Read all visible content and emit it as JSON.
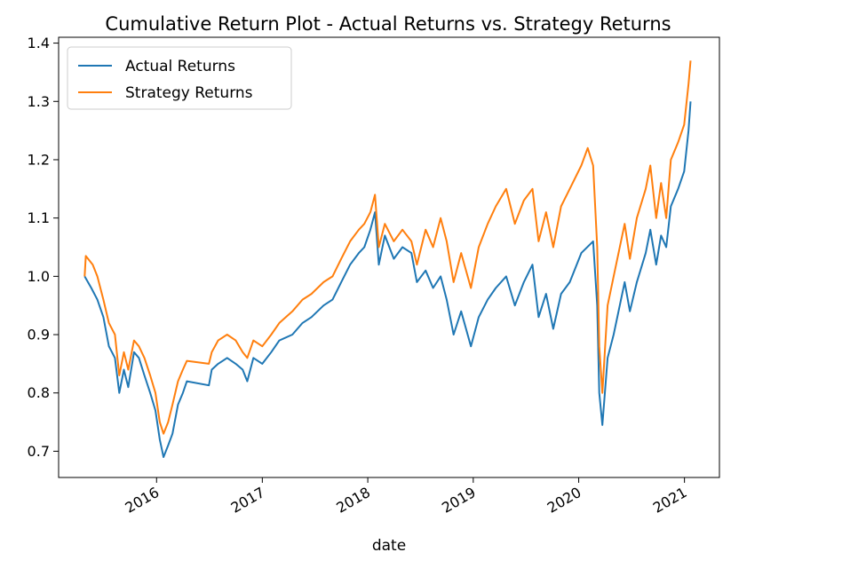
{
  "chart_data": {
    "type": "line",
    "title": "Cumulative Return Plot - Actual Returns vs. Strategy Returns",
    "xlabel": "date",
    "ylabel": "",
    "x_type": "date",
    "xlim": [
      "2015-01-27",
      "2021-05-02"
    ],
    "ylim": [
      0.655,
      1.41
    ],
    "yticks": [
      0.7,
      0.8,
      0.9,
      1.0,
      1.1,
      1.2,
      1.3,
      1.4
    ],
    "ytick_labels": [
      "0.7",
      "0.8",
      "0.9",
      "1.0",
      "1.1",
      "1.2",
      "1.3",
      "1.4"
    ],
    "xticks": [
      "2016-01-01",
      "2017-01-01",
      "2018-01-01",
      "2019-01-01",
      "2020-01-01",
      "2021-01-01"
    ],
    "xtick_labels": [
      "2016",
      "2017",
      "2018",
      "2019",
      "2020",
      "2021"
    ],
    "grid": false,
    "legend_position": "top-left",
    "series": [
      {
        "name": "Actual Returns",
        "color": "#1f77b4",
        "points": [
          [
            "2015-04-27",
            1.0
          ],
          [
            "2015-05-20",
            0.98
          ],
          [
            "2015-06-10",
            0.96
          ],
          [
            "2015-07-01",
            0.93
          ],
          [
            "2015-07-20",
            0.88
          ],
          [
            "2015-08-10",
            0.86
          ],
          [
            "2015-08-25",
            0.8
          ],
          [
            "2015-09-10",
            0.84
          ],
          [
            "2015-09-25",
            0.81
          ],
          [
            "2015-10-15",
            0.87
          ],
          [
            "2015-11-01",
            0.86
          ],
          [
            "2015-11-20",
            0.83
          ],
          [
            "2015-12-10",
            0.8
          ],
          [
            "2015-12-28",
            0.77
          ],
          [
            "2016-01-12",
            0.72
          ],
          [
            "2016-01-25",
            0.69
          ],
          [
            "2016-02-10",
            0.71
          ],
          [
            "2016-02-25",
            0.73
          ],
          [
            "2016-03-15",
            0.78
          ],
          [
            "2016-04-01",
            0.8
          ],
          [
            "2016-04-15",
            0.82
          ],
          [
            "2016-06-30",
            0.813
          ],
          [
            "2016-07-10",
            0.84
          ],
          [
            "2016-08-01",
            0.85
          ],
          [
            "2016-09-01",
            0.86
          ],
          [
            "2016-10-01",
            0.85
          ],
          [
            "2016-10-25",
            0.84
          ],
          [
            "2016-11-10",
            0.82
          ],
          [
            "2016-12-01",
            0.86
          ],
          [
            "2017-01-01",
            0.85
          ],
          [
            "2017-02-01",
            0.87
          ],
          [
            "2017-03-01",
            0.89
          ],
          [
            "2017-04-15",
            0.9
          ],
          [
            "2017-05-20",
            0.92
          ],
          [
            "2017-06-20",
            0.93
          ],
          [
            "2017-08-01",
            0.95
          ],
          [
            "2017-09-01",
            0.96
          ],
          [
            "2017-10-01",
            0.99
          ],
          [
            "2017-11-01",
            1.02
          ],
          [
            "2017-12-01",
            1.04
          ],
          [
            "2017-12-20",
            1.05
          ],
          [
            "2018-01-10",
            1.08
          ],
          [
            "2018-01-26",
            1.11
          ],
          [
            "2018-02-08",
            1.02
          ],
          [
            "2018-03-01",
            1.07
          ],
          [
            "2018-04-01",
            1.03
          ],
          [
            "2018-05-01",
            1.05
          ],
          [
            "2018-06-01",
            1.04
          ],
          [
            "2018-06-20",
            0.99
          ],
          [
            "2018-07-20",
            1.01
          ],
          [
            "2018-08-15",
            0.98
          ],
          [
            "2018-09-10",
            1.0
          ],
          [
            "2018-10-01",
            0.96
          ],
          [
            "2018-10-25",
            0.9
          ],
          [
            "2018-11-20",
            0.94
          ],
          [
            "2018-12-24",
            0.88
          ],
          [
            "2019-01-20",
            0.93
          ],
          [
            "2019-02-20",
            0.96
          ],
          [
            "2019-03-20",
            0.98
          ],
          [
            "2019-04-25",
            1.0
          ],
          [
            "2019-05-25",
            0.95
          ],
          [
            "2019-06-25",
            0.99
          ],
          [
            "2019-07-25",
            1.02
          ],
          [
            "2019-08-15",
            0.93
          ],
          [
            "2019-09-10",
            0.97
          ],
          [
            "2019-10-05",
            0.91
          ],
          [
            "2019-11-01",
            0.97
          ],
          [
            "2019-12-01",
            0.99
          ],
          [
            "2020-01-10",
            1.04
          ],
          [
            "2020-02-20",
            1.06
          ],
          [
            "2020-03-05",
            0.95
          ],
          [
            "2020-03-12",
            0.8
          ],
          [
            "2020-03-23",
            0.745
          ],
          [
            "2020-04-10",
            0.86
          ],
          [
            "2020-05-01",
            0.9
          ],
          [
            "2020-06-08",
            0.99
          ],
          [
            "2020-06-26",
            0.94
          ],
          [
            "2020-07-20",
            0.99
          ],
          [
            "2020-08-20",
            1.04
          ],
          [
            "2020-09-05",
            1.08
          ],
          [
            "2020-09-25",
            1.02
          ],
          [
            "2020-10-12",
            1.07
          ],
          [
            "2020-10-30",
            1.05
          ],
          [
            "2020-11-15",
            1.12
          ],
          [
            "2020-12-10",
            1.15
          ],
          [
            "2020-12-31",
            1.18
          ],
          [
            "2021-01-15",
            1.25
          ],
          [
            "2021-01-22",
            1.3
          ]
        ]
      },
      {
        "name": "Strategy Returns",
        "color": "#ff7f0e",
        "points": [
          [
            "2015-04-27",
            1.0
          ],
          [
            "2015-05-01",
            1.035
          ],
          [
            "2015-05-25",
            1.02
          ],
          [
            "2015-06-10",
            1.0
          ],
          [
            "2015-07-01",
            0.96
          ],
          [
            "2015-07-20",
            0.92
          ],
          [
            "2015-08-10",
            0.9
          ],
          [
            "2015-08-25",
            0.83
          ],
          [
            "2015-09-10",
            0.87
          ],
          [
            "2015-09-25",
            0.84
          ],
          [
            "2015-10-15",
            0.89
          ],
          [
            "2015-11-01",
            0.88
          ],
          [
            "2015-11-20",
            0.86
          ],
          [
            "2015-12-10",
            0.83
          ],
          [
            "2015-12-28",
            0.8
          ],
          [
            "2016-01-12",
            0.75
          ],
          [
            "2016-01-25",
            0.73
          ],
          [
            "2016-02-10",
            0.75
          ],
          [
            "2016-02-25",
            0.78
          ],
          [
            "2016-03-15",
            0.82
          ],
          [
            "2016-04-01",
            0.84
          ],
          [
            "2016-04-15",
            0.855
          ],
          [
            "2016-06-30",
            0.85
          ],
          [
            "2016-07-10",
            0.87
          ],
          [
            "2016-08-01",
            0.89
          ],
          [
            "2016-09-01",
            0.9
          ],
          [
            "2016-10-01",
            0.89
          ],
          [
            "2016-10-25",
            0.87
          ],
          [
            "2016-11-10",
            0.86
          ],
          [
            "2016-12-01",
            0.89
          ],
          [
            "2017-01-01",
            0.88
          ],
          [
            "2017-02-01",
            0.9
          ],
          [
            "2017-03-01",
            0.92
          ],
          [
            "2017-04-15",
            0.94
          ],
          [
            "2017-05-20",
            0.96
          ],
          [
            "2017-06-20",
            0.97
          ],
          [
            "2017-08-01",
            0.99
          ],
          [
            "2017-09-01",
            1.0
          ],
          [
            "2017-10-01",
            1.03
          ],
          [
            "2017-11-01",
            1.06
          ],
          [
            "2017-12-01",
            1.08
          ],
          [
            "2017-12-20",
            1.09
          ],
          [
            "2018-01-10",
            1.11
          ],
          [
            "2018-01-26",
            1.14
          ],
          [
            "2018-02-08",
            1.05
          ],
          [
            "2018-03-01",
            1.09
          ],
          [
            "2018-04-01",
            1.06
          ],
          [
            "2018-05-01",
            1.08
          ],
          [
            "2018-06-01",
            1.06
          ],
          [
            "2018-06-20",
            1.02
          ],
          [
            "2018-07-20",
            1.08
          ],
          [
            "2018-08-15",
            1.05
          ],
          [
            "2018-09-10",
            1.1
          ],
          [
            "2018-10-01",
            1.06
          ],
          [
            "2018-10-25",
            0.99
          ],
          [
            "2018-11-20",
            1.04
          ],
          [
            "2018-12-24",
            0.98
          ],
          [
            "2019-01-20",
            1.05
          ],
          [
            "2019-02-20",
            1.09
          ],
          [
            "2019-03-20",
            1.12
          ],
          [
            "2019-04-25",
            1.15
          ],
          [
            "2019-05-25",
            1.09
          ],
          [
            "2019-06-25",
            1.13
          ],
          [
            "2019-07-25",
            1.15
          ],
          [
            "2019-08-15",
            1.06
          ],
          [
            "2019-09-10",
            1.11
          ],
          [
            "2019-10-05",
            1.05
          ],
          [
            "2019-11-01",
            1.12
          ],
          [
            "2019-12-01",
            1.15
          ],
          [
            "2020-01-10",
            1.19
          ],
          [
            "2020-02-01",
            1.22
          ],
          [
            "2020-02-20",
            1.19
          ],
          [
            "2020-03-05",
            1.05
          ],
          [
            "2020-03-12",
            0.88
          ],
          [
            "2020-03-23",
            0.8
          ],
          [
            "2020-04-10",
            0.95
          ],
          [
            "2020-05-01",
            1.0
          ],
          [
            "2020-06-08",
            1.09
          ],
          [
            "2020-06-26",
            1.03
          ],
          [
            "2020-07-20",
            1.1
          ],
          [
            "2020-08-20",
            1.15
          ],
          [
            "2020-09-05",
            1.19
          ],
          [
            "2020-09-25",
            1.1
          ],
          [
            "2020-10-12",
            1.16
          ],
          [
            "2020-10-30",
            1.1
          ],
          [
            "2020-11-15",
            1.2
          ],
          [
            "2020-12-10",
            1.23
          ],
          [
            "2020-12-31",
            1.26
          ],
          [
            "2021-01-15",
            1.33
          ],
          [
            "2021-01-22",
            1.37
          ]
        ]
      }
    ]
  }
}
